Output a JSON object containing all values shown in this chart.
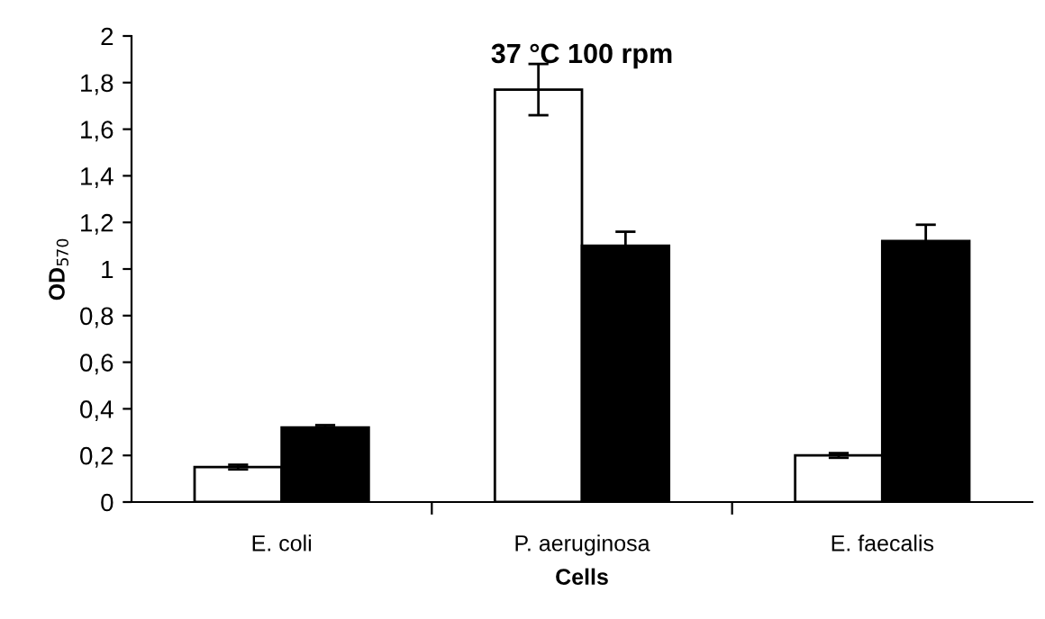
{
  "chart_data": {
    "type": "bar",
    "title": "37 °C 100 rpm",
    "xlabel": "Cells",
    "ylabel": "OD$_{570}$",
    "categories": [
      "E. coli",
      "P. aeruginosa",
      "E. faecalis"
    ],
    "series": [
      {
        "color": "#ffffff",
        "values": [
          0.15,
          1.77,
          0.2
        ],
        "errors": [
          0.01,
          0.11,
          0.01
        ]
      },
      {
        "color": "#000000",
        "values": [
          0.32,
          1.1,
          1.12
        ],
        "errors": [
          0.01,
          0.06,
          0.07
        ]
      }
    ],
    "ylim": [
      0,
      2
    ],
    "yticks": [
      0,
      {
        "value": 0.2,
        "label": "0,2"
      },
      {
        "value": 0.4,
        "label": "0,4"
      },
      {
        "value": 0.6,
        "label": "0,6"
      },
      {
        "value": 0.8,
        "label": "0,8"
      },
      1,
      {
        "value": 1.2,
        "label": "1,2"
      },
      {
        "value": 1.4,
        "label": "1,4"
      },
      {
        "value": 1.6,
        "label": "1,6"
      },
      {
        "value": 1.8,
        "label": "1,8"
      },
      2
    ],
    "grid": false,
    "legend": false
  }
}
